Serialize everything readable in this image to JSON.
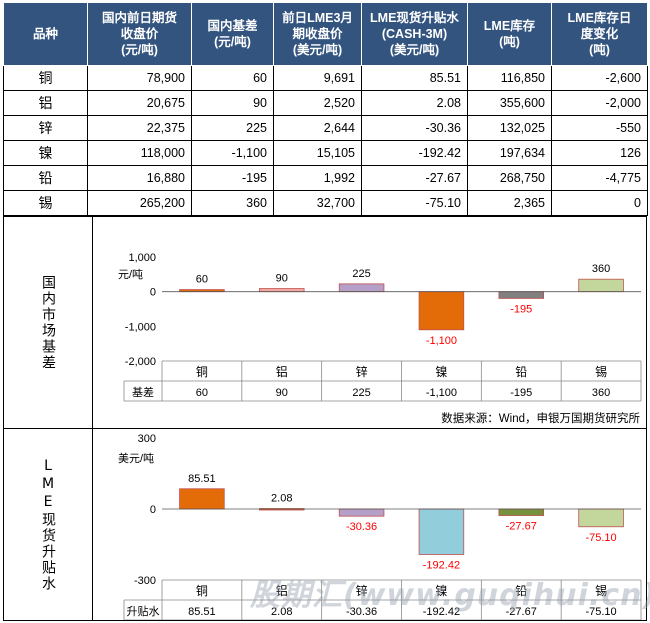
{
  "table": {
    "headers": [
      "品种",
      "国内前日期货收盘价(元/吨)",
      "国内基差(元/吨)",
      "前日LME3月期收盘价(美元/吨)",
      "LME现货升贴水(CASH-3M)(美元/吨)",
      "LME库存(吨)",
      "LME库存日度变化(吨)"
    ],
    "header_lines": [
      [
        "品种"
      ],
      [
        "国内前日期货",
        "收盘价",
        "(元/吨)"
      ],
      [
        "国内基差",
        "(元/吨)"
      ],
      [
        "前日LME3月",
        "期收盘价",
        "(美元/吨)"
      ],
      [
        "LME现货升贴水",
        "(CASH-3M)",
        "(美元/吨)"
      ],
      [
        "LME库存",
        "(吨)"
      ],
      [
        "LME库存日",
        "度变化",
        "(吨)"
      ]
    ],
    "rows": [
      {
        "name": "铜",
        "close": "78,900",
        "basis": "60",
        "lme3m": "9,691",
        "spread": "85.51",
        "stock": "116,850",
        "change": "-2,600"
      },
      {
        "name": "铝",
        "close": "20,675",
        "basis": "90",
        "lme3m": "2,520",
        "spread": "2.08",
        "stock": "355,600",
        "change": "-2,000"
      },
      {
        "name": "锌",
        "close": "22,375",
        "basis": "225",
        "lme3m": "2,644",
        "spread": "-30.36",
        "stock": "132,025",
        "change": "-550"
      },
      {
        "name": "镍",
        "close": "118,000",
        "basis": "-1,100",
        "lme3m": "15,105",
        "spread": "-192.42",
        "stock": "197,634",
        "change": "126"
      },
      {
        "name": "铅",
        "close": "16,880",
        "basis": "-195",
        "lme3m": "1,992",
        "spread": "-27.67",
        "stock": "268,750",
        "change": "-4,775"
      },
      {
        "name": "锡",
        "close": "265,200",
        "basis": "360",
        "lme3m": "32,700",
        "spread": "-75.10",
        "stock": "2,365",
        "change": "0"
      }
    ]
  },
  "section1": {
    "label": "国内市场基差",
    "source": "数据来源：Wind，申银万国期货研究所"
  },
  "section2": {
    "label": "LME现货升贴水"
  },
  "chart_data": [
    {
      "type": "bar",
      "categories": [
        "铜",
        "铝",
        "锌",
        "镍",
        "铅",
        "锡"
      ],
      "values": [
        60,
        90,
        225,
        -1100,
        -195,
        360
      ],
      "value_labels": [
        "60",
        "90",
        "225",
        "-1,100",
        "-195",
        "360"
      ],
      "series_name": "基差",
      "ylabel": "元/吨",
      "ylim": [
        -2000,
        1000
      ],
      "ticks": [
        1000,
        0,
        -1000,
        -2000
      ],
      "tick_labels": [
        "1,000",
        "0",
        "-1,000",
        "-2,000"
      ],
      "colors": [
        "#e36c09",
        "#f2a7a0",
        "#b4a0c8",
        "#e36c09",
        "#808080",
        "#c3d69b"
      ]
    },
    {
      "type": "bar",
      "categories": [
        "铜",
        "铝",
        "锌",
        "镍",
        "铅",
        "锡"
      ],
      "values": [
        85.51,
        2.08,
        -30.36,
        -192.42,
        -27.67,
        -75.1
      ],
      "value_labels": [
        "85.51",
        "2.08",
        "-30.36",
        "-192.42",
        "-27.67",
        "-75.10"
      ],
      "series_name": "升贴水",
      "ylabel": "美元/吨",
      "ylim": [
        -300,
        300
      ],
      "ticks": [
        300,
        0,
        -300
      ],
      "tick_labels": [
        "300",
        "0",
        "-300"
      ],
      "colors": [
        "#e36c09",
        "#e36c09",
        "#b4a0c8",
        "#92cddc",
        "#76923c",
        "#c3d69b"
      ]
    }
  ],
  "watermark": "股期汇(www.guqihui.cn)"
}
